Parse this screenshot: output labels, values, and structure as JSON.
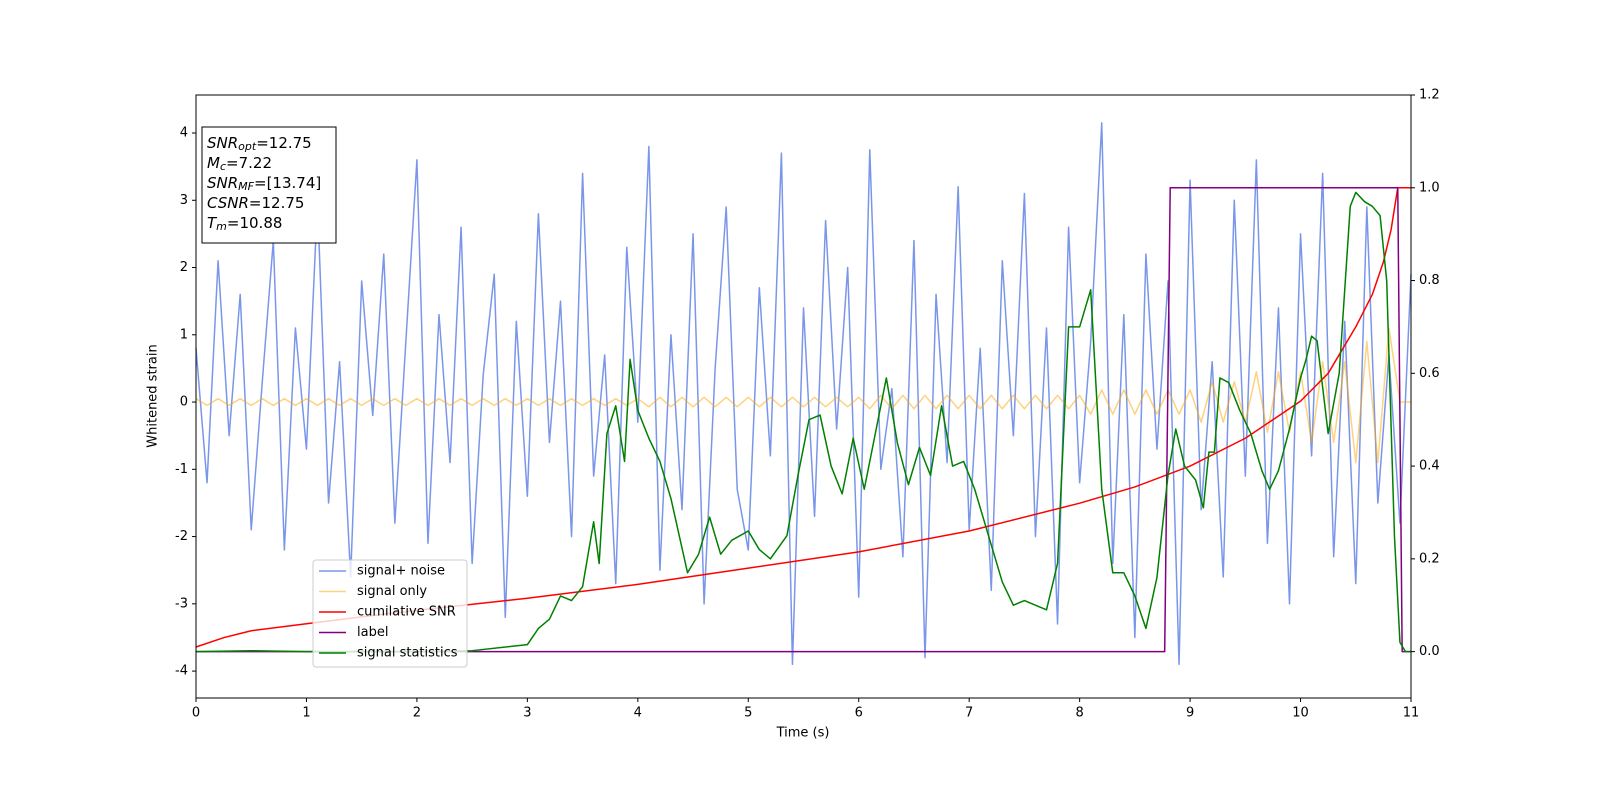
{
  "chart_data": {
    "type": "line",
    "xlabel": "Time (s)",
    "ylabel": "Whitened strain",
    "xlim": [
      0,
      11
    ],
    "xticks": [
      0,
      1,
      2,
      3,
      4,
      5,
      6,
      7,
      8,
      9,
      10,
      11
    ],
    "ylim": [
      -4.4,
      4.565
    ],
    "yticks": [
      -4,
      -3,
      -2,
      -1,
      0,
      1,
      2,
      3,
      4
    ],
    "y2lim": [
      -0.1,
      1.2
    ],
    "y2ticks": [
      {
        "value": 0,
        "label": "0.0"
      },
      0.2,
      0.4,
      0.6,
      0.8,
      {
        "value": 1,
        "label": "1.0"
      },
      1.2
    ],
    "grid": false,
    "legend": "lower left",
    "x": [
      0,
      0.1,
      0.2,
      0.3,
      0.4,
      0.5,
      0.6,
      0.7,
      0.8,
      0.9,
      1,
      1.1,
      1.2,
      1.3,
      1.4,
      1.5,
      1.6,
      1.7,
      1.8,
      1.9,
      2,
      2.1,
      2.2,
      2.3,
      2.4,
      2.5,
      2.6,
      2.7,
      2.8,
      2.9,
      3,
      3.1,
      3.2,
      3.3,
      3.4,
      3.5,
      3.6,
      3.7,
      3.8,
      3.9,
      4,
      4.1,
      4.2,
      4.3,
      4.4,
      4.5,
      4.6,
      4.7,
      4.8,
      4.9,
      5,
      5.1,
      5.2,
      5.3,
      5.4,
      5.5,
      5.6,
      5.7,
      5.8,
      5.9,
      6,
      6.1,
      6.2,
      6.3,
      6.4,
      6.5,
      6.6,
      6.7,
      6.8,
      6.9,
      7,
      7.1,
      7.2,
      7.3,
      7.4,
      7.5,
      7.6,
      7.7,
      7.8,
      7.9,
      8,
      8.1,
      8.2,
      8.3,
      8.4,
      8.5,
      8.6,
      8.7,
      8.8,
      8.9,
      9,
      9.1,
      9.2,
      9.3,
      9.4,
      9.5,
      9.6,
      9.7,
      9.8,
      9.9,
      10,
      10.1,
      10.2,
      10.3,
      10.4,
      10.5,
      10.6,
      10.7,
      10.8,
      10.9,
      11
    ],
    "series": [
      {
        "name": "signal+ noise",
        "color": "royalblue",
        "alpha": 0.7,
        "values": [
          0.8,
          -1.2,
          2.1,
          -0.5,
          1.6,
          -1.9,
          0.3,
          2.4,
          -2.2,
          1.1,
          -0.7,
          3.0,
          -1.5,
          0.6,
          -2.6,
          1.8,
          -0.2,
          2.2,
          -1.8,
          0.9,
          3.6,
          -2.1,
          1.3,
          -0.9,
          2.6,
          -2.4,
          0.4,
          1.9,
          -3.2,
          1.2,
          -1.4,
          2.8,
          -0.6,
          1.5,
          -2.0,
          3.4,
          -1.1,
          0.7,
          -2.7,
          2.3,
          -0.3,
          3.8,
          -2.5,
          1.0,
          -1.6,
          2.5,
          -3.0,
          0.5,
          2.9,
          -1.3,
          -2.2,
          1.7,
          -0.8,
          3.7,
          -3.9,
          1.4,
          -1.7,
          2.7,
          -0.4,
          2.0,
          -2.9,
          3.75,
          -1.0,
          0.2,
          -2.3,
          2.4,
          -3.8,
          1.6,
          -0.9,
          3.2,
          -1.9,
          0.8,
          -2.8,
          2.1,
          -0.5,
          3.1,
          -2.0,
          1.1,
          -3.3,
          2.6,
          -1.2,
          0.9,
          4.15,
          -2.4,
          1.3,
          -3.5,
          2.2,
          -0.7,
          1.8,
          -3.9,
          3.3,
          -1.6,
          0.6,
          -2.6,
          3.0,
          -1.1,
          3.6,
          -2.1,
          1.4,
          -3.0,
          2.5,
          -0.8,
          3.4,
          -2.3,
          1.2,
          -2.7,
          2.9,
          -1.5,
          0.7,
          -1.8,
          1.9
        ]
      },
      {
        "name": "signal only",
        "color": "orange",
        "alpha": 0.5,
        "values": [
          0.05,
          -0.05,
          0.05,
          -0.05,
          0.05,
          -0.05,
          0.05,
          -0.05,
          0.05,
          -0.05,
          0.05,
          -0.05,
          0.05,
          -0.05,
          0.05,
          -0.05,
          0.05,
          -0.05,
          0.05,
          -0.05,
          0.05,
          -0.05,
          0.05,
          -0.05,
          0.05,
          -0.05,
          0.05,
          -0.05,
          0.05,
          -0.05,
          0.05,
          -0.05,
          0.05,
          -0.05,
          0.05,
          -0.05,
          0.05,
          -0.05,
          0.05,
          -0.05,
          0.05,
          -0.07,
          0.07,
          -0.07,
          0.07,
          -0.07,
          0.07,
          -0.07,
          0.07,
          -0.07,
          0.07,
          -0.07,
          0.07,
          -0.07,
          0.07,
          -0.07,
          0.07,
          -0.07,
          0.07,
          -0.07,
          0.07,
          -0.1,
          0.1,
          -0.1,
          0.1,
          -0.1,
          0.1,
          -0.1,
          0.1,
          -0.1,
          0.1,
          -0.1,
          0.1,
          -0.1,
          0.1,
          -0.1,
          0.1,
          -0.1,
          0.1,
          -0.1,
          0.1,
          -0.18,
          0.18,
          -0.18,
          0.18,
          -0.18,
          0.18,
          -0.18,
          0.18,
          -0.18,
          0.18,
          -0.3,
          0.3,
          -0.3,
          0.3,
          -0.3,
          0.45,
          -0.45,
          0.45,
          -0.45,
          0.45,
          -0.6,
          0.6,
          -0.6,
          0.6,
          -0.9,
          0.9,
          -0.9,
          1.1,
          0,
          0
        ]
      },
      {
        "name": "cumilative SNR",
        "color": "red",
        "axis": "y2",
        "x": [
          0,
          0.25,
          0.5,
          1,
          1.5,
          2,
          3,
          4,
          5,
          6,
          7,
          8,
          8.5,
          9,
          9.5,
          10,
          10.25,
          10.5,
          10.65,
          10.75,
          10.82,
          10.88,
          11
        ],
        "values": [
          0.01,
          0.03,
          0.045,
          0.06,
          0.075,
          0.089,
          0.115,
          0.145,
          0.18,
          0.215,
          0.26,
          0.32,
          0.355,
          0.4,
          0.46,
          0.54,
          0.6,
          0.7,
          0.77,
          0.84,
          0.91,
          1.0,
          1.0
        ]
      },
      {
        "name": "label",
        "color": "purple",
        "axis": "y2",
        "x": [
          0,
          8.77,
          8.82,
          10.88,
          10.92,
          11
        ],
        "values": [
          0,
          0,
          1,
          1,
          0,
          0
        ]
      },
      {
        "name": "signal statistics",
        "color": "green",
        "axis": "y2",
        "x": [
          0,
          0.5,
          1,
          1.5,
          2,
          2.5,
          3,
          3.1,
          3.2,
          3.3,
          3.4,
          3.5,
          3.6,
          3.65,
          3.72,
          3.8,
          3.88,
          3.93,
          4.0,
          4.1,
          4.2,
          4.3,
          4.45,
          4.55,
          4.65,
          4.75,
          4.85,
          5.0,
          5.1,
          5.2,
          5.35,
          5.45,
          5.55,
          5.65,
          5.75,
          5.85,
          5.95,
          6.05,
          6.15,
          6.25,
          6.35,
          6.45,
          6.55,
          6.65,
          6.75,
          6.85,
          6.95,
          7.05,
          7.2,
          7.3,
          7.4,
          7.5,
          7.6,
          7.7,
          7.8,
          7.9,
          8.0,
          8.1,
          8.2,
          8.3,
          8.4,
          8.5,
          8.6,
          8.7,
          8.8,
          8.87,
          8.95,
          9.05,
          9.12,
          9.17,
          9.22,
          9.27,
          9.35,
          9.45,
          9.55,
          9.65,
          9.72,
          9.8,
          9.9,
          10.0,
          10.05,
          10.1,
          10.15,
          10.25,
          10.35,
          10.45,
          10.5,
          10.58,
          10.65,
          10.72,
          10.78,
          10.85,
          10.9,
          10.95,
          11
        ],
        "values": [
          0,
          0.002,
          0,
          0,
          0,
          0.002,
          0.015,
          0.05,
          0.07,
          0.12,
          0.11,
          0.14,
          0.28,
          0.19,
          0.47,
          0.53,
          0.41,
          0.63,
          0.52,
          0.46,
          0.41,
          0.33,
          0.17,
          0.21,
          0.29,
          0.21,
          0.24,
          0.26,
          0.22,
          0.2,
          0.25,
          0.38,
          0.5,
          0.51,
          0.4,
          0.34,
          0.46,
          0.35,
          0.47,
          0.59,
          0.45,
          0.36,
          0.44,
          0.38,
          0.53,
          0.4,
          0.41,
          0.35,
          0.23,
          0.15,
          0.1,
          0.11,
          0.1,
          0.09,
          0.19,
          0.7,
          0.7,
          0.78,
          0.35,
          0.17,
          0.17,
          0.12,
          0.05,
          0.16,
          0.38,
          0.48,
          0.4,
          0.37,
          0.31,
          0.43,
          0.43,
          0.59,
          0.58,
          0.52,
          0.47,
          0.39,
          0.35,
          0.39,
          0.48,
          0.59,
          0.63,
          0.68,
          0.67,
          0.47,
          0.6,
          0.96,
          0.99,
          0.97,
          0.96,
          0.94,
          0.8,
          0.25,
          0.02,
          0,
          0
        ]
      }
    ],
    "annotation": [
      {
        "name": "SNR",
        "sub": "opt",
        "value": "=12.75"
      },
      {
        "name": "M",
        "sub": "c",
        "value": "=7.22"
      },
      {
        "name": "SNR",
        "sub": "MF",
        "value": "=[13.74]"
      },
      {
        "name": "CSNR",
        "value": "=12.75"
      },
      {
        "name": "T",
        "sub": "m",
        "value": "=10.88"
      }
    ]
  }
}
